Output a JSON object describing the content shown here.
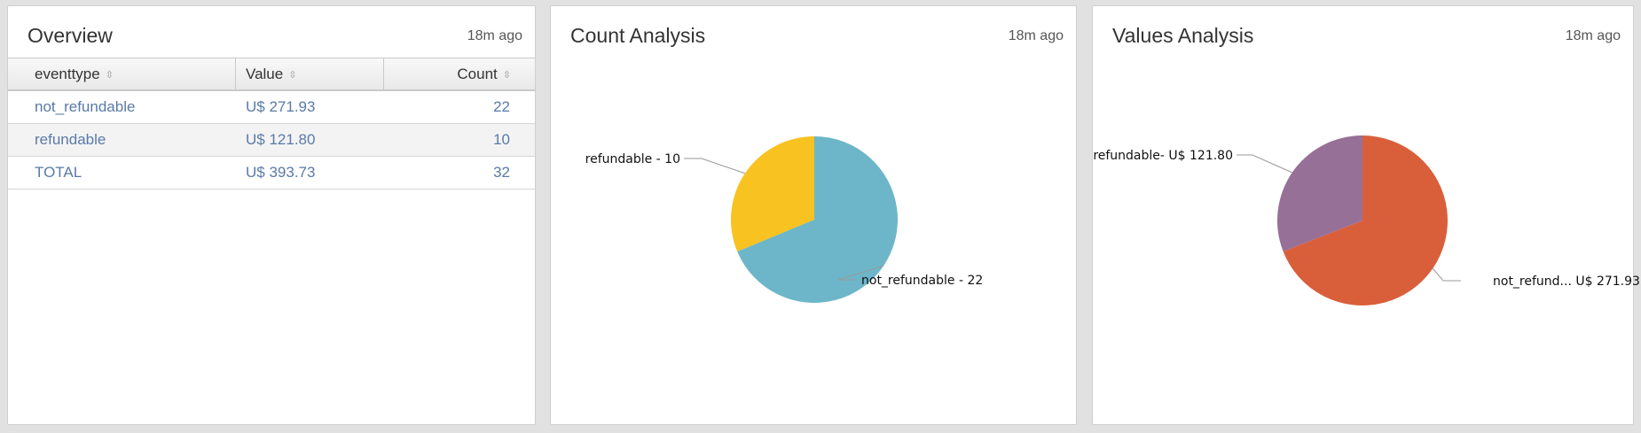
{
  "overview": {
    "title": "Overview",
    "time": "18m ago",
    "columns": [
      "eventtype",
      "Value",
      "Count"
    ],
    "rows": [
      {
        "eventtype": "not_refundable",
        "value": "U$ 271.93",
        "count": "22"
      },
      {
        "eventtype": "refundable",
        "value": "U$ 121.80",
        "count": "10"
      },
      {
        "eventtype": "TOTAL",
        "value": "U$ 393.73",
        "count": "32"
      }
    ],
    "link_color": "#5a7aa8"
  },
  "count_analysis": {
    "title": "Count Analysis",
    "time": "18m ago",
    "chart_data": {
      "type": "pie",
      "categories": [
        "not_refundable",
        "refundable"
      ],
      "values": [
        22,
        10
      ],
      "labels": [
        "not_refundable - 22",
        "refundable - 10"
      ],
      "colors": [
        "#6db6c9",
        "#f8c220"
      ]
    }
  },
  "values_analysis": {
    "title": "Values Analysis",
    "time": "18m ago",
    "chart_data": {
      "type": "pie",
      "categories": [
        "not_refundable",
        "refundable"
      ],
      "values": [
        271.93,
        121.8
      ],
      "labels": [
        "not_refund... U$ 271.93",
        "refundable- U$ 121.80"
      ],
      "colors": [
        "#d95f3b",
        "#977097"
      ]
    }
  }
}
